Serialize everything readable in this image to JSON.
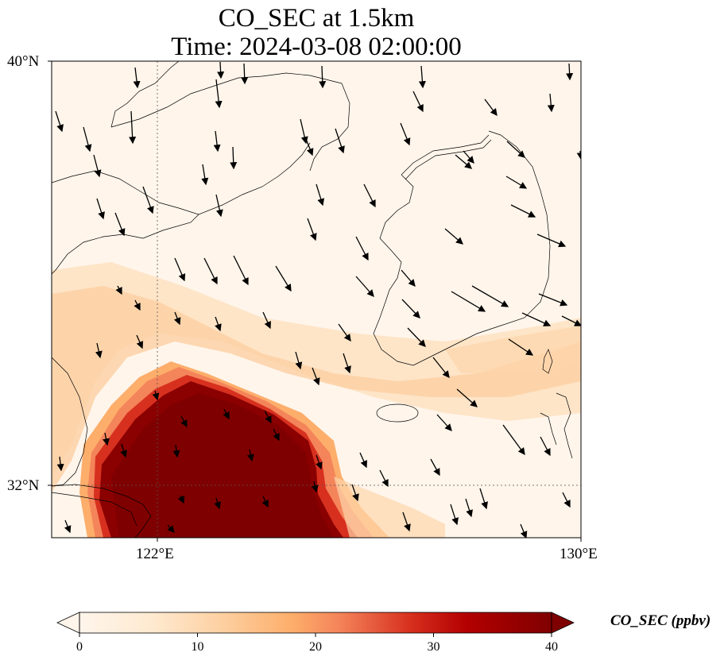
{
  "title": {
    "line1": "CO_SEC at 1.5km",
    "line2": "Time: 2024-03-08 02:00:00"
  },
  "map": {
    "lat_labels": [
      "40°N",
      "32°N"
    ],
    "lon_labels": [
      "122°E",
      "130°E"
    ],
    "extent": {
      "lon_min": 120,
      "lon_max": 130,
      "lat_min": 31,
      "lat_max": 40
    },
    "gridlines": {
      "lon": 122,
      "lat": 32,
      "style": "dotted"
    },
    "field": "CO_SEC",
    "field_description": "high concentration plume over East China Sea / Yellow Sea southwest corner, decaying northeastward; background near zero",
    "colors": {
      "low": "#fff5eb",
      "mid": "#fdae6b",
      "high": "#7f0000",
      "coast": "#000000"
    }
  },
  "colorbar": {
    "label": "CO_SEC (ppbv)",
    "ticks": [
      "0",
      "10",
      "20",
      "30",
      "40"
    ],
    "min": 0,
    "max": 40,
    "extend": "both",
    "colormap": "OrRd"
  },
  "wind_vectors": {
    "direction": "mostly from north-northwest to south-southeast",
    "style": "black arrows"
  }
}
